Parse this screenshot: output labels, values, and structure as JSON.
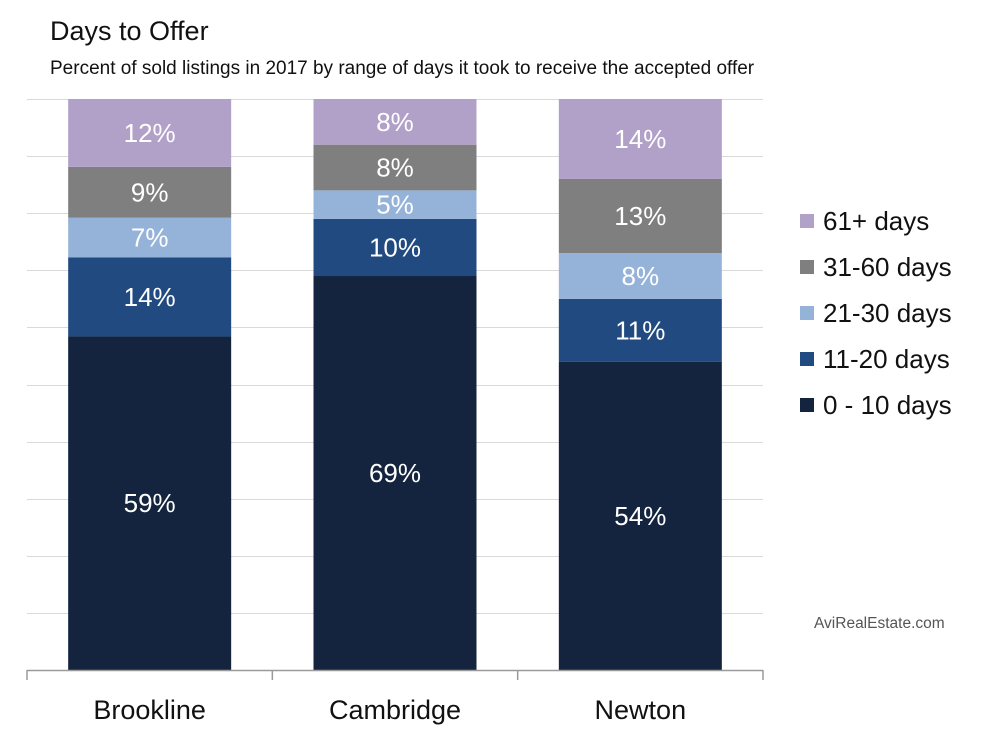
{
  "title": "Days to Offer",
  "subtitle": "Percent of sold listings in 2017 by range of days it took to receive the accepted offer",
  "watermark": "AviRealEstate.com",
  "chart_data": {
    "type": "bar",
    "stacked": true,
    "categories": [
      "Brookline",
      "Cambridge",
      "Newton"
    ],
    "series": [
      {
        "name": "0 - 10 days",
        "color": "#14243f",
        "values": [
          59,
          69,
          54
        ],
        "labels": [
          "59%",
          "69%",
          "54%"
        ]
      },
      {
        "name": "11-20 days",
        "color": "#214a80",
        "values": [
          14,
          10,
          11
        ],
        "labels": [
          "14%",
          "10%",
          "11%"
        ]
      },
      {
        "name": "21-30 days",
        "color": "#95b3d9",
        "values": [
          7,
          5,
          8
        ],
        "labels": [
          "7%",
          "5%",
          "8%"
        ]
      },
      {
        "name": "31-60 days",
        "color": "#7f7f7f",
        "values": [
          9,
          8,
          13
        ],
        "labels": [
          "9%",
          "8%",
          "13%"
        ]
      },
      {
        "name": "61+ days",
        "color": "#b1a0c8",
        "values": [
          12,
          8,
          14
        ],
        "labels": [
          "12%",
          "8%",
          "14%"
        ]
      }
    ],
    "ylim": [
      0,
      100
    ],
    "grid": true,
    "legend": "right",
    "legend_order": [
      "61+ days",
      "31-60 days",
      "21-30 days",
      "11-20 days",
      "0 - 10 days"
    ]
  }
}
